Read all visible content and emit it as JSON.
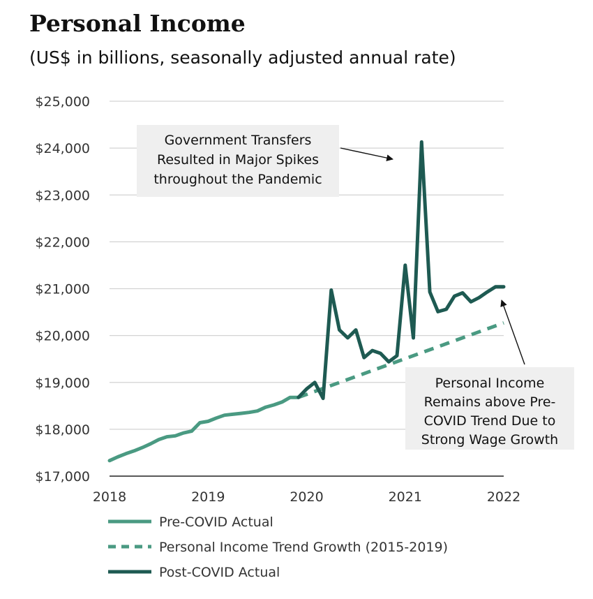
{
  "title": "Personal Income",
  "subtitle": "(US$ in billions, seasonally adjusted annual rate)",
  "colors": {
    "pre": "#4a9a82",
    "trend": "#4a9a82",
    "post": "#1e5a52",
    "grid": "#d3d3d3",
    "box": "#efefef"
  },
  "chart_data": {
    "type": "line",
    "ylim": [
      17000,
      25000
    ],
    "xlim": [
      2018,
      2022
    ],
    "yticks": [
      17000,
      18000,
      19000,
      20000,
      21000,
      22000,
      23000,
      24000,
      25000
    ],
    "ytick_labels": [
      "$17,000",
      "$18,000",
      "$19,000",
      "$20,000",
      "$21,000",
      "$22,000",
      "$23,000",
      "$24,000",
      "$25,000"
    ],
    "xticks": [
      2018,
      2019,
      2020,
      2021,
      2022
    ],
    "xtick_labels": [
      "2018",
      "2019",
      "2020",
      "2021",
      "2022"
    ],
    "grid": true,
    "legend_position": "bottom-left",
    "series": [
      {
        "name": "Pre-COVID Actual",
        "style": "solid",
        "x": [
          2018.0,
          2018.083,
          2018.167,
          2018.25,
          2018.333,
          2018.417,
          2018.5,
          2018.583,
          2018.667,
          2018.75,
          2018.833,
          2018.917,
          2019.0,
          2019.083,
          2019.167,
          2019.25,
          2019.333,
          2019.417,
          2019.5,
          2019.583,
          2019.667,
          2019.75,
          2019.833,
          2019.917
        ],
        "y": [
          17330,
          17410,
          17480,
          17540,
          17610,
          17690,
          17780,
          17840,
          17860,
          17920,
          17960,
          18140,
          18170,
          18240,
          18300,
          18320,
          18340,
          18360,
          18390,
          18470,
          18520,
          18580,
          18680,
          18680
        ]
      },
      {
        "name": "Personal Income Trend Growth (2015-2019)",
        "style": "dashed",
        "x": [
          2019.917,
          2022.0
        ],
        "y": [
          18680,
          20270
        ]
      },
      {
        "name": "Post-COVID Actual",
        "style": "solid",
        "x": [
          2019.917,
          2020.0,
          2020.083,
          2020.167,
          2020.25,
          2020.333,
          2020.417,
          2020.5,
          2020.583,
          2020.667,
          2020.75,
          2020.833,
          2020.917,
          2021.0,
          2021.083,
          2021.167,
          2021.25,
          2021.333,
          2021.417,
          2021.5,
          2021.583,
          2021.667,
          2021.75,
          2021.833,
          2021.917,
          2022.0
        ],
        "y": [
          18680,
          18860,
          19000,
          18660,
          20970,
          20120,
          19950,
          20120,
          19530,
          19680,
          19620,
          19440,
          19570,
          21500,
          19950,
          24130,
          20930,
          20510,
          20560,
          20840,
          20910,
          20720,
          20810,
          20930,
          21040,
          21040
        ]
      }
    ],
    "annotations": [
      {
        "text": [
          "Government Transfers",
          "Resulted in Major Spikes",
          "throughout the Pandemic"
        ]
      },
      {
        "text": [
          "Personal Income",
          "Remains above Pre-",
          "COVID Trend Due to",
          "Strong Wage Growth"
        ]
      }
    ]
  }
}
